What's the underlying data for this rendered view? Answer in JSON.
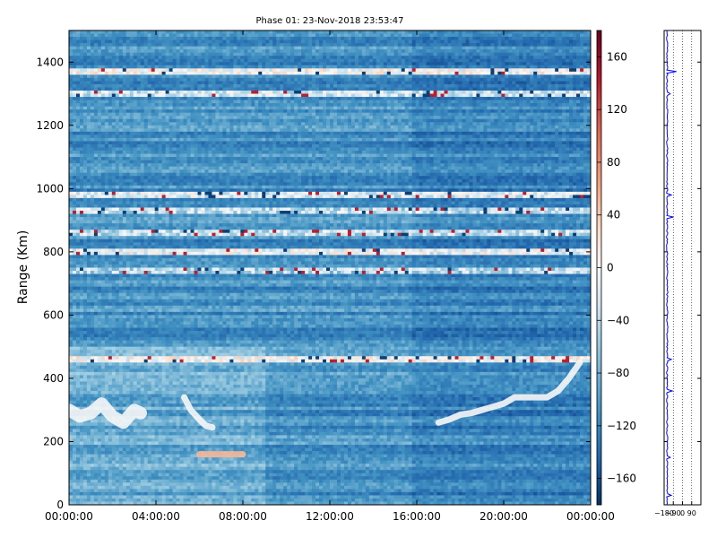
{
  "chart_data": [
    {
      "type": "heatmap",
      "title": "Phase 01: 23-Nov-2018 23:53:47",
      "ylabel": "Range (Km)",
      "xlabel": "",
      "ylim": [
        0,
        1500
      ],
      "yticks": [
        "0",
        "200",
        "400",
        "600",
        "800",
        "1000",
        "1200",
        "1400"
      ],
      "ytick_values": [
        0,
        200,
        400,
        600,
        800,
        1000,
        1200,
        1400
      ],
      "xlim_hours": [
        0,
        24
      ],
      "xticks": [
        "00:00:00",
        "04:00:00",
        "08:00:00",
        "12:00:00",
        "16:00:00",
        "20:00:00",
        "00:00:00"
      ],
      "xtick_hours": [
        0,
        4,
        8,
        12,
        16,
        20,
        24
      ],
      "colorbar": {
        "vmin": -180,
        "vmax": 180,
        "ticks": [
          -160,
          -120,
          -80,
          -40,
          0,
          40,
          80,
          120,
          160
        ],
        "tick_labels": [
          "−160",
          "−120",
          "−80",
          "−40",
          "0",
          "40",
          "80",
          "120",
          "160"
        ],
        "colormap": "RdBu_r",
        "colors": [
          "#053061",
          "#2166ac",
          "#4393c3",
          "#92c5de",
          "#d1e5f0",
          "#f7f7f7",
          "#fddbc7",
          "#f4a582",
          "#d6604d",
          "#b2182b",
          "#67001f"
        ]
      },
      "background_value": -110,
      "range_bands_km": [
        {
          "center": 1370,
          "value": 0
        },
        {
          "center": 1300,
          "value": -30
        },
        {
          "center": 980,
          "value": -20
        },
        {
          "center": 860,
          "value": -40
        },
        {
          "center": 800,
          "value": -10
        },
        {
          "center": 460,
          "value": 0
        },
        {
          "center": 740,
          "value": -50
        },
        {
          "center": 930,
          "value": -40
        }
      ],
      "features": [
        {
          "name": "early-arc",
          "hours": [
            0.0,
            0.5,
            1.0,
            1.5,
            2.0,
            2.5,
            3.0,
            3.3
          ],
          "range_km": [
            300,
            280,
            290,
            320,
            280,
            260,
            300,
            290
          ],
          "value": 0
        },
        {
          "name": "descending-trace",
          "hours": [
            5.3,
            5.6,
            6.0,
            6.3,
            6.6
          ],
          "range_km": [
            340,
            300,
            270,
            250,
            245
          ],
          "value": 0
        },
        {
          "name": "ascending-trace",
          "hours": [
            17.0,
            17.5,
            18.0,
            18.5,
            19.0,
            19.5,
            20.0,
            20.5,
            21.0,
            21.5,
            22.0,
            22.5,
            23.0,
            23.5
          ],
          "range_km": [
            260,
            270,
            285,
            290,
            300,
            310,
            320,
            340,
            340,
            340,
            340,
            360,
            400,
            450
          ],
          "value": 0
        },
        {
          "name": "warm-streak",
          "hours": [
            6.0,
            6.5,
            7.0,
            7.5,
            8.0
          ],
          "range_km": [
            160,
            160,
            160,
            160,
            160
          ],
          "value": 60
        }
      ]
    },
    {
      "type": "line",
      "title": "",
      "xlim": [
        -180,
        180
      ],
      "xtick_labels": [
        "−180",
        "−90",
        "0",
        "90"
      ],
      "xtick_values": [
        -180,
        -90,
        0,
        90
      ],
      "ylim": [
        0,
        1500
      ],
      "series_color": "#0000ff",
      "baseline_value": -150,
      "spikes": [
        {
          "range_km": 1370,
          "value": -60
        },
        {
          "range_km": 1300,
          "value": -120
        },
        {
          "range_km": 980,
          "value": -110
        },
        {
          "range_km": 910,
          "value": -90
        },
        {
          "range_km": 460,
          "value": -110
        },
        {
          "range_km": 360,
          "value": -100
        },
        {
          "range_km": 150,
          "value": -120
        },
        {
          "range_km": 30,
          "value": -110
        }
      ]
    }
  ]
}
